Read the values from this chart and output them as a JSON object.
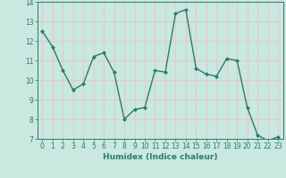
{
  "x": [
    0,
    1,
    2,
    3,
    4,
    5,
    6,
    7,
    8,
    9,
    10,
    11,
    12,
    13,
    14,
    15,
    16,
    17,
    18,
    19,
    20,
    21,
    22,
    23
  ],
  "y": [
    12.5,
    11.7,
    10.5,
    9.5,
    9.8,
    11.2,
    11.4,
    10.4,
    8.0,
    8.5,
    8.6,
    10.5,
    10.4,
    13.4,
    13.6,
    10.6,
    10.3,
    10.2,
    11.1,
    11.0,
    8.6,
    7.2,
    6.9,
    7.1
  ],
  "line_color": "#2d7a6e",
  "marker": "D",
  "markersize": 2.0,
  "linewidth": 1.0,
  "xlabel": "Humidex (Indice chaleur)",
  "ylim": [
    7,
    14
  ],
  "xlim": [
    -0.5,
    23.5
  ],
  "yticks": [
    7,
    8,
    9,
    10,
    11,
    12,
    13,
    14
  ],
  "xticks": [
    0,
    1,
    2,
    3,
    4,
    5,
    6,
    7,
    8,
    9,
    10,
    11,
    12,
    13,
    14,
    15,
    16,
    17,
    18,
    19,
    20,
    21,
    22,
    23
  ],
  "bg_color": "#c8e8e0",
  "grid_color": "#e8c8c8",
  "tick_color": "#2d7a6e",
  "label_color": "#2d7a6e",
  "xlabel_fontsize": 6.5,
  "tick_fontsize": 5.5
}
